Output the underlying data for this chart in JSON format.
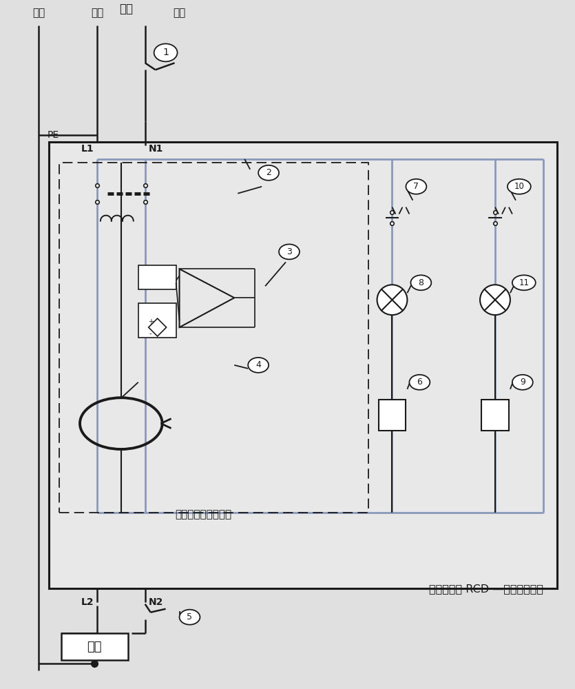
{
  "bg_color": "#e8e8e8",
  "line_color": "#1a1a1a",
  "blue_color": "#7799bb",
  "title": "漏电保护器 RCD —双测试电路型",
  "inner_title": "漏电保护器主要结构",
  "label_ground": "地线",
  "label_fire": "火线",
  "label_power": "电源",
  "label_zero": "零线",
  "label_PE": "PE",
  "label_L1": "L1",
  "label_N1": "N1",
  "label_L2": "L2",
  "label_N2": "N2",
  "label_load": "负载"
}
